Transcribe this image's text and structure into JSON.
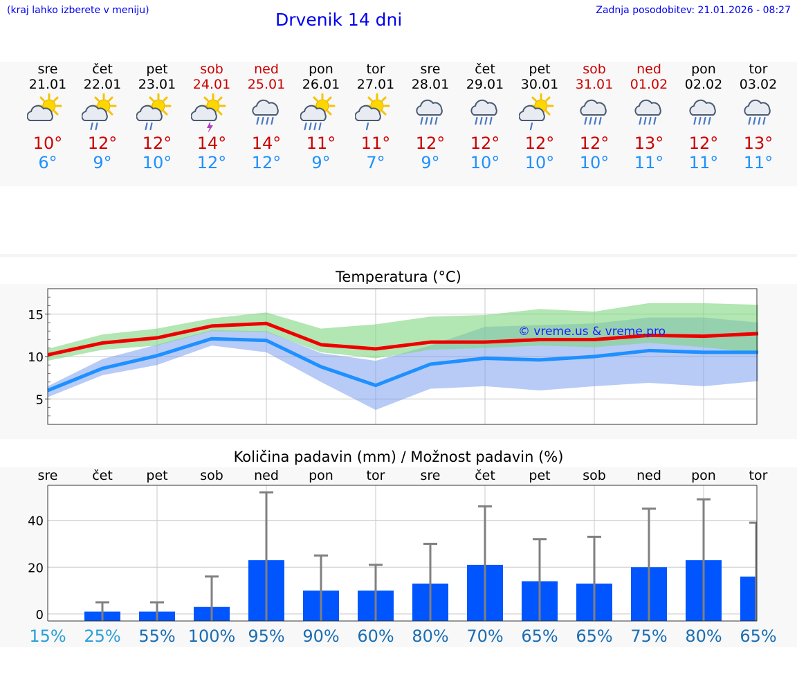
{
  "header": {
    "hint": "(kraj lahko izberete v meniju)",
    "title": "Drvenik 14 dni",
    "updated": "Zadnja posodobitev: 21.01.2026 - 08:27"
  },
  "colors": {
    "max": "#ee0000",
    "min": "#1e90ff",
    "bar": "#0055ff",
    "weekend": "#cc0000"
  },
  "days": [
    {
      "name": "sre",
      "date": "21.01",
      "weekend": false,
      "icon": "sun-cloud-icon",
      "max": "10°",
      "min": "6°"
    },
    {
      "name": "čet",
      "date": "22.01",
      "weekend": false,
      "icon": "sun-cloud-rain-icon",
      "max": "12°",
      "min": "9°"
    },
    {
      "name": "pet",
      "date": "23.01",
      "weekend": false,
      "icon": "sun-cloud-rain-icon",
      "max": "12°",
      "min": "10°"
    },
    {
      "name": "sob",
      "date": "24.01",
      "weekend": true,
      "icon": "sun-cloud-thunder-icon",
      "max": "14°",
      "min": "12°"
    },
    {
      "name": "ned",
      "date": "25.01",
      "weekend": true,
      "icon": "cloud-rain-icon",
      "max": "14°",
      "min": "12°"
    },
    {
      "name": "pon",
      "date": "26.01",
      "weekend": false,
      "icon": "sun-cloud-heavy-rain-icon",
      "max": "11°",
      "min": "9°"
    },
    {
      "name": "tor",
      "date": "27.01",
      "weekend": false,
      "icon": "sun-cloud-light-rain-icon",
      "max": "11°",
      "min": "7°"
    },
    {
      "name": "sre",
      "date": "28.01",
      "weekend": false,
      "icon": "cloud-rain-icon",
      "max": "12°",
      "min": "9°"
    },
    {
      "name": "čet",
      "date": "29.01",
      "weekend": false,
      "icon": "cloud-rain-icon",
      "max": "12°",
      "min": "10°"
    },
    {
      "name": "pet",
      "date": "30.01",
      "weekend": false,
      "icon": "sun-cloud-light-rain-icon",
      "max": "12°",
      "min": "10°"
    },
    {
      "name": "sob",
      "date": "31.01",
      "weekend": true,
      "icon": "cloud-rain-icon",
      "max": "12°",
      "min": "10°"
    },
    {
      "name": "ned",
      "date": "01.02",
      "weekend": true,
      "icon": "cloud-rain-icon",
      "max": "13°",
      "min": "11°"
    },
    {
      "name": "pon",
      "date": "02.02",
      "weekend": false,
      "icon": "cloud-rain-icon",
      "max": "12°",
      "min": "11°"
    },
    {
      "name": "tor",
      "date": "03.02",
      "weekend": false,
      "icon": "cloud-rain-icon",
      "max": "13°",
      "min": "11°"
    }
  ],
  "chart_data": [
    {
      "type": "line",
      "title": "Temperatura (°C)",
      "x": [
        0,
        1,
        2,
        3,
        4,
        5,
        6,
        7,
        8,
        9,
        10,
        11,
        12,
        13
      ],
      "ylim": [
        2,
        18
      ],
      "yticks": [
        5,
        10,
        15
      ],
      "watermark": "© vreme.us & vreme.pro",
      "series": [
        {
          "name": "max",
          "values": [
            10.2,
            11.6,
            12.2,
            13.6,
            13.9,
            11.4,
            10.9,
            11.7,
            11.7,
            12.0,
            12.0,
            12.5,
            12.4,
            12.7
          ],
          "band_low": [
            9.5,
            10.8,
            11.3,
            13.0,
            12.9,
            10.5,
            9.8,
            10.8,
            11.0,
            11.3,
            11.1,
            11.6,
            11.1,
            10.4
          ],
          "band_high": [
            10.9,
            12.6,
            13.3,
            14.5,
            15.2,
            13.3,
            13.8,
            14.7,
            14.9,
            15.6,
            15.3,
            16.3,
            16.3,
            16.1
          ]
        },
        {
          "name": "min",
          "values": [
            6.0,
            8.6,
            10.1,
            12.1,
            11.9,
            8.8,
            6.6,
            9.1,
            9.8,
            9.6,
            10.0,
            10.7,
            10.5,
            10.5
          ],
          "band_low": [
            5.2,
            7.8,
            9.0,
            11.3,
            10.5,
            7.0,
            3.7,
            6.2,
            6.5,
            6.0,
            6.5,
            6.9,
            6.5,
            7.1
          ],
          "band_high": [
            6.5,
            9.7,
            11.4,
            13.1,
            13.0,
            10.4,
            9.5,
            11.3,
            13.5,
            13.7,
            13.9,
            14.6,
            14.6,
            14.0
          ]
        }
      ]
    },
    {
      "type": "bar",
      "title": "Količina padavin (mm) / Možnost padavin (%)",
      "categories": [
        "sre",
        "čet",
        "pet",
        "sob",
        "ned",
        "pon",
        "tor",
        "sre",
        "čet",
        "pet",
        "sob",
        "ned",
        "pon",
        "tor"
      ],
      "ylim": [
        -3,
        55
      ],
      "yticks": [
        0,
        20,
        40
      ],
      "values": [
        0,
        1,
        1,
        3,
        23,
        10,
        10,
        13,
        21,
        14,
        13,
        20,
        23,
        16
      ],
      "error_high": [
        0,
        5,
        5,
        16,
        52,
        25,
        21,
        30,
        46,
        32,
        33,
        45,
        49,
        39
      ],
      "chance": [
        "15%",
        "25%",
        "55%",
        "100%",
        "95%",
        "90%",
        "60%",
        "80%",
        "70%",
        "65%",
        "65%",
        "75%",
        "80%",
        "65%"
      ],
      "chance_colors": [
        "#2a9fd6",
        "#2a9fd6",
        "#1a6db3",
        "#1a6db3",
        "#1a6db3",
        "#1a6db3",
        "#1a6db3",
        "#1a6db3",
        "#1a6db3",
        "#1a6db3",
        "#1a6db3",
        "#1a6db3",
        "#1a6db3",
        "#1a6db3"
      ]
    }
  ]
}
